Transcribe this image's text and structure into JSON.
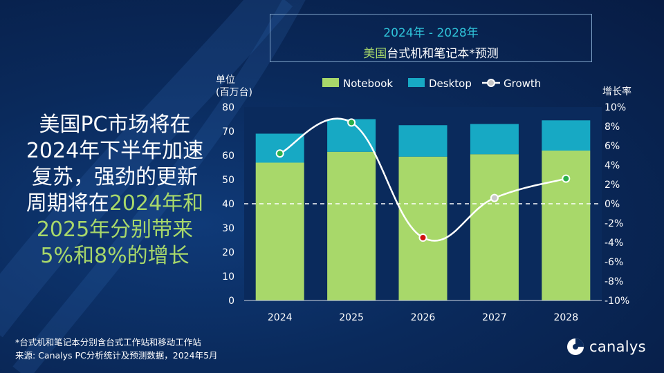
{
  "title": {
    "line1": "2024年 - 2028年",
    "line2_highlight": "美国",
    "line2_rest": "台式机和笔记本*预测"
  },
  "headline": {
    "line1": "美国PC市场将在",
    "line2": "2024年下半年加速",
    "line3": "复苏，强劲的更新",
    "line4_white": "周期将在",
    "line4_green": "2024年和",
    "line5": "2025年分别带来",
    "line6": "5%和8%的增长"
  },
  "footnote": {
    "line1": "*台式机和笔记本分别含台式工作站和移动工作站",
    "line2": "来源: Canalys PC分析统计及预测数据，2024年5月"
  },
  "logo": {
    "text": "canalys",
    "icon": "canalys-logo-icon"
  },
  "colors": {
    "notebook": "#a8d86a",
    "desktop": "#17a9c4",
    "growth_line": "#ffffff",
    "growth_marker_positive": "#2bb04a",
    "growth_marker_negative": "#d01010",
    "growth_marker_neutral": "#c8c8c8",
    "plot_bg": "#0a2a5c"
  },
  "chart_data": {
    "type": "bar",
    "stacked": true,
    "categories": [
      "2024",
      "2025",
      "2026",
      "2027",
      "2028"
    ],
    "series": [
      {
        "name": "Notebook",
        "values": [
          57,
          61.5,
          59.5,
          60.5,
          62
        ]
      },
      {
        "name": "Desktop",
        "values": [
          12,
          13.5,
          13,
          12.5,
          12.5
        ]
      },
      {
        "name": "Growth",
        "values": [
          5.2,
          8.4,
          -3.5,
          0.6,
          2.6
        ],
        "axis": "right",
        "unit": "%"
      }
    ],
    "ylabel_left_line1": "单位",
    "ylabel_left_line2": "(百万台)",
    "ylabel_right": "增长率",
    "ylim_left": [
      0,
      80
    ],
    "yticks_left": [
      "0",
      "10",
      "20",
      "30",
      "40",
      "50",
      "60",
      "70",
      "80"
    ],
    "ylim_right": [
      -10,
      10
    ],
    "yticks_right": [
      "-10%",
      "-8%",
      "-6%",
      "-4%",
      "-2%",
      "0%",
      "2%",
      "4%",
      "6%",
      "8%",
      "10%"
    ],
    "legend_position": "top",
    "zero_growth_reference_line": "dashed"
  }
}
